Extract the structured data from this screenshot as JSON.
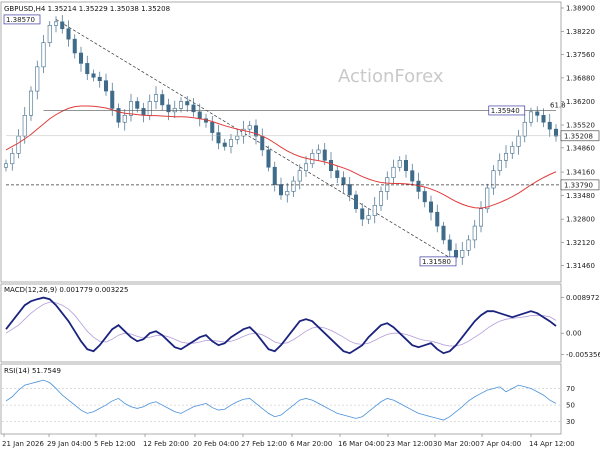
{
  "header": {
    "symbol_line": "GBPUSD,H4  1.35214 1.35229 1.35038 1.35208"
  },
  "watermark": "ActionForex",
  "colors": {
    "candle": "#3e6b8a",
    "ma": "#e03c3c",
    "macd": "#1a237e",
    "signal": "#b39ddb",
    "rsi": "#4a90d9",
    "hline": "#555555"
  },
  "chart_data": [
    {
      "type": "candlestick",
      "panel": "price",
      "ylim": [
        1.311,
        1.389
      ],
      "y_ticks": [
        "1.38900",
        "1.38220",
        "1.37560",
        "1.36880",
        "1.36200",
        "1.35520",
        "1.34860",
        "1.34160",
        "1.33480",
        "1.32800",
        "1.32120",
        "1.31460"
      ],
      "x_ticks": [
        "21 Jan 2026",
        "29 Jan 04:00",
        "5 Feb 12:00",
        "12 Feb 20:00",
        "20 Feb 04:00",
        "27 Feb 12:00",
        "6 Mar 20:00",
        "16 Mar 04:00",
        "23 Mar 12:00",
        "30 Mar 20:00",
        "7 Apr 04:00",
        "14 Apr 12:00"
      ],
      "series": [
        {
          "close": [
            1.344,
            1.347,
            1.352,
            1.358,
            1.365,
            1.372,
            1.379,
            1.384,
            1.385,
            1.383,
            1.38,
            1.376,
            1.373,
            1.37,
            1.369,
            1.368,
            1.365,
            1.36,
            1.356,
            1.358,
            1.362,
            1.36,
            1.358,
            1.362,
            1.364,
            1.361,
            1.359,
            1.36,
            1.362,
            1.361,
            1.359,
            1.357,
            1.356,
            1.353,
            1.35,
            1.349,
            1.351,
            1.352,
            1.354,
            1.355,
            1.352,
            1.348,
            1.343,
            1.338,
            1.335,
            1.336,
            1.339,
            1.342,
            1.344,
            1.347,
            1.348,
            1.345,
            1.342,
            1.34,
            1.338,
            1.335,
            1.331,
            1.328,
            1.329,
            1.332,
            1.336,
            1.34,
            1.343,
            1.345,
            1.342,
            1.339,
            1.336,
            1.333,
            1.33,
            1.326,
            1.322,
            1.319,
            1.317,
            1.319,
            1.322,
            1.326,
            1.331,
            1.337,
            1.342,
            1.345,
            1.347,
            1.349,
            1.352,
            1.356,
            1.359,
            1.358,
            1.356,
            1.354,
            1.352
          ],
          "ma": [
            1.348,
            1.349,
            1.35,
            1.3512,
            1.3525,
            1.354,
            1.3555,
            1.357,
            1.3582,
            1.3592,
            1.36,
            1.3605,
            1.3607,
            1.3607,
            1.3606,
            1.3604,
            1.3601,
            1.3596,
            1.359,
            1.3586,
            1.3584,
            1.3582,
            1.358,
            1.3579,
            1.3579,
            1.3578,
            1.3577,
            1.3576,
            1.3576,
            1.3575,
            1.3573,
            1.357,
            1.3567,
            1.3562,
            1.3556,
            1.355,
            1.3545,
            1.354,
            1.3536,
            1.3532,
            1.3527,
            1.352,
            1.3511,
            1.35,
            1.3488,
            1.3477,
            1.3468,
            1.3461,
            1.3456,
            1.3452,
            1.3449,
            1.3445,
            1.344,
            1.3434,
            1.3428,
            1.3421,
            1.3412,
            1.3403,
            1.3396,
            1.339,
            1.3386,
            1.3384,
            1.3383,
            1.3383,
            1.3382,
            1.338,
            1.3377,
            1.3373,
            1.3367,
            1.336,
            1.3351,
            1.3341,
            1.3331,
            1.3323,
            1.3317,
            1.3313,
            1.3312,
            1.3315,
            1.3321,
            1.3328,
            1.3336,
            1.3345,
            1.3355,
            1.3367,
            1.3379,
            1.339,
            1.34,
            1.3409,
            1.3417
          ]
        }
      ],
      "annotations": [
        {
          "label": "1.38570",
          "value": 1.3857
        },
        {
          "label": "1.35940",
          "value": 1.3594
        },
        {
          "label": "1.35208",
          "value": 1.35208
        },
        {
          "label": "1.33790",
          "value": 1.3379
        },
        {
          "label": "1.31580",
          "value": 1.3158
        },
        {
          "label": "61.8",
          "value": 1.3594
        }
      ]
    },
    {
      "type": "line",
      "panel": "macd",
      "title": "MACD(12,26,9) 0.001779 0.003225",
      "ylim": [
        -0.0062,
        0.0098
      ],
      "y_ticks": [
        "0.008972",
        "0.00",
        "-0.005356"
      ],
      "series": [
        {
          "name": "MACD",
          "values": [
            0.001,
            0.003,
            0.005,
            0.007,
            0.008,
            0.0085,
            0.0089,
            0.0085,
            0.007,
            0.005,
            0.003,
            0.0005,
            -0.002,
            -0.004,
            -0.0045,
            -0.003,
            -0.001,
            0.001,
            0.002,
            0.0005,
            -0.001,
            -0.002,
            -0.0015,
            0.0,
            0.0005,
            -0.0005,
            -0.002,
            -0.0035,
            -0.004,
            -0.003,
            -0.002,
            -0.001,
            -0.0005,
            -0.002,
            -0.003,
            -0.0025,
            -0.001,
            0.0,
            0.001,
            0.0015,
            0.0,
            -0.002,
            -0.004,
            -0.0045,
            -0.003,
            -0.001,
            0.001,
            0.003,
            0.0035,
            0.003,
            0.0015,
            0.0,
            -0.0015,
            -0.003,
            -0.0045,
            -0.005,
            -0.004,
            -0.003,
            -0.001,
            0.0005,
            0.002,
            0.0025,
            0.0015,
            0.0,
            -0.0015,
            -0.003,
            -0.0035,
            -0.003,
            -0.0025,
            -0.004,
            -0.005,
            -0.0045,
            -0.003,
            -0.001,
            0.001,
            0.003,
            0.0045,
            0.0055,
            0.0055,
            0.005,
            0.0045,
            0.004,
            0.0045,
            0.005,
            0.0055,
            0.005,
            0.004,
            0.003,
            0.0018
          ]
        },
        {
          "name": "Signal",
          "values": [
            0.0,
            0.001,
            0.002,
            0.0035,
            0.005,
            0.0062,
            0.0072,
            0.0078,
            0.0076,
            0.007,
            0.006,
            0.0045,
            0.0025,
            0.0005,
            -0.001,
            -0.002,
            -0.0022,
            -0.0015,
            -0.0005,
            0.0,
            -0.0002,
            -0.0008,
            -0.0012,
            -0.001,
            -0.0006,
            -0.0005,
            -0.0009,
            -0.0015,
            -0.0022,
            -0.0025,
            -0.0025,
            -0.0022,
            -0.0018,
            -0.0018,
            -0.002,
            -0.0022,
            -0.002,
            -0.0015,
            -0.0008,
            -0.0002,
            0.0,
            -0.0004,
            -0.0012,
            -0.0022,
            -0.0026,
            -0.0024,
            -0.0016,
            -0.0006,
            0.0005,
            0.0013,
            0.0016,
            0.0013,
            0.0007,
            -0.0001,
            -0.001,
            -0.002,
            -0.0026,
            -0.0028,
            -0.0025,
            -0.0018,
            -0.001,
            -0.0003,
            0.0,
            0.0,
            -0.0003,
            -0.0008,
            -0.0014,
            -0.0018,
            -0.002,
            -0.0024,
            -0.0029,
            -0.0032,
            -0.0032,
            -0.0028,
            -0.002,
            -0.001,
            0.0,
            0.0012,
            0.0022,
            0.003,
            0.0035,
            0.0037,
            0.0039,
            0.0041,
            0.0044,
            0.0045,
            0.0044,
            0.0041,
            0.0032
          ]
        }
      ]
    },
    {
      "type": "line",
      "panel": "rsi",
      "title": "RSI(14) 51.7549",
      "ylim": [
        20,
        85
      ],
      "y_ticks": [
        "70",
        "50",
        "30"
      ],
      "series": [
        {
          "name": "RSI",
          "values": [
            55,
            60,
            68,
            74,
            76,
            78,
            80,
            77,
            70,
            62,
            56,
            50,
            44,
            40,
            42,
            46,
            50,
            55,
            58,
            52,
            48,
            46,
            48,
            52,
            54,
            50,
            46,
            42,
            40,
            44,
            48,
            50,
            52,
            47,
            44,
            45,
            50,
            54,
            57,
            58,
            52,
            46,
            40,
            36,
            38,
            44,
            50,
            56,
            58,
            56,
            52,
            48,
            44,
            40,
            38,
            36,
            34,
            36,
            42,
            48,
            54,
            58,
            56,
            52,
            48,
            44,
            40,
            38,
            36,
            34,
            32,
            36,
            42,
            48,
            55,
            60,
            64,
            68,
            70,
            72,
            66,
            70,
            74,
            72,
            70,
            66,
            62,
            56,
            52
          ]
        }
      ]
    }
  ]
}
